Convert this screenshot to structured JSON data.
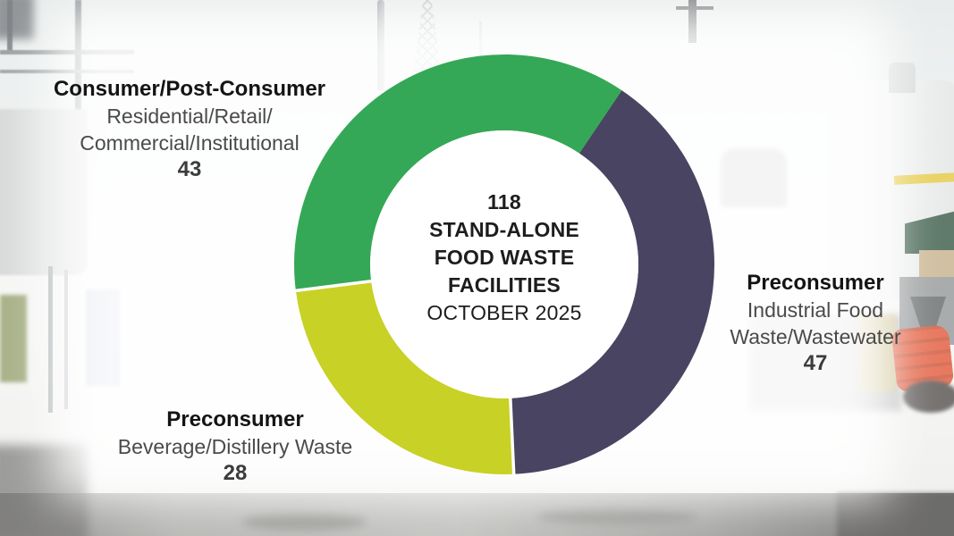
{
  "chart_data": {
    "type": "pie",
    "variant": "donut",
    "title": "118 STAND-ALONE FOOD WASTE FACILITIES OCTOBER 2025",
    "total": 118,
    "center_lines": [
      "118",
      "STAND-ALONE",
      "FOOD WASTE",
      "FACILITIES",
      "OCTOBER 2025"
    ],
    "start_angle_deg": 34,
    "direction": "clockwise",
    "legend_position": "around",
    "segments": [
      {
        "name": "preconsumer-industrial",
        "label": "Preconsumer",
        "sublabel": "Industrial Food Waste/Wastewater",
        "value": 47,
        "color": "#383454",
        "separator_after": true
      },
      {
        "name": "preconsumer-beverage",
        "label": "Preconsumer",
        "sublabel": "Beverage/Distillery Waste",
        "value": 28,
        "color": "#c3cd12",
        "separator_after": true
      },
      {
        "name": "consumer-post-consumer",
        "label": "Consumer/Post-Consumer",
        "sublabel": "Residential/Retail/Commercial/Institutional",
        "value": 43,
        "color": "#23a148",
        "separator_after": false
      }
    ]
  },
  "labels": {
    "left": {
      "title": "Consumer/Post-Consumer",
      "line1": "Residential/Retail/",
      "line2": "Commercial/Institutional"
    },
    "right": {
      "title": "Preconsumer",
      "line1": "Industrial Food",
      "line2": "Waste/Wastewater"
    },
    "bottom_left": {
      "title": "Preconsumer",
      "line1": "Beverage/Distillery Waste"
    }
  },
  "colors": {
    "green": "#23a148",
    "navy": "#383454",
    "chartreuse": "#c3cd12",
    "title_text": "#141414",
    "secondary_text": "#4a4a4a"
  }
}
